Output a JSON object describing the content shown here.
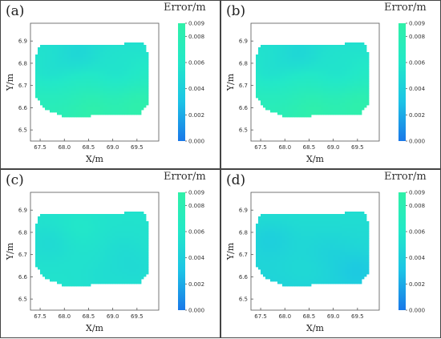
{
  "figure": {
    "colorbar_title": "Error/m",
    "xlabel": "X/m",
    "ylabel": "Y/m"
  },
  "chart_data": [
    {
      "type": "heatmap",
      "panel_label": "(a)",
      "xlabel": "X/m",
      "ylabel": "Y/m",
      "xlim": [
        67.3,
        69.95
      ],
      "ylim": [
        6.45,
        6.98
      ],
      "x_ticks": [
        "67.5",
        "68.0",
        "68.5",
        "69.0",
        "69.5"
      ],
      "y_ticks": [
        "6.5",
        "6.6",
        "6.7",
        "6.8",
        "6.9"
      ],
      "colorbar": {
        "title": "Error/m",
        "range": [
          0,
          0.009
        ],
        "ticks": [
          "0.000",
          "0.002",
          "0.004",
          "0.006",
          "0.008",
          "0.009"
        ],
        "colors": [
          "#1a78e8",
          "#1cc3e6",
          "#22e8c8",
          "#30f0a8"
        ]
      },
      "region": [
        [
          67.42,
          6.84
        ],
        [
          67.5,
          6.88
        ],
        [
          69.65,
          6.89
        ],
        [
          69.75,
          6.83
        ],
        [
          69.72,
          6.62
        ],
        [
          69.55,
          6.57
        ],
        [
          68.0,
          6.56
        ],
        [
          67.55,
          6.6
        ],
        [
          67.42,
          6.65
        ]
      ],
      "field": {
        "base": 0.0066,
        "gradient_y": -0.0012,
        "blobs": [
          [
            68.3,
            6.83,
            -0.001
          ],
          [
            67.7,
            6.75,
            -0.0008
          ],
          [
            69.1,
            6.74,
            -0.0007
          ],
          [
            68.6,
            6.6,
            0.001
          ],
          [
            69.55,
            6.62,
            0.0012
          ]
        ]
      }
    },
    {
      "type": "heatmap",
      "panel_label": "(b)",
      "xlabel": "X/m",
      "ylabel": "Y/m",
      "xlim": [
        67.3,
        69.95
      ],
      "ylim": [
        6.45,
        6.98
      ],
      "x_ticks": [
        "67.5",
        "68.0",
        "68.5",
        "69.0",
        "69.5"
      ],
      "y_ticks": [
        "6.5",
        "6.6",
        "6.7",
        "6.8",
        "6.9"
      ],
      "colorbar": {
        "title": "Error/m",
        "range": [
          0,
          0.009
        ],
        "ticks": [
          "0.000",
          "0.002",
          "0.004",
          "0.006",
          "0.008",
          "0.009"
        ],
        "colors": [
          "#1a78e8",
          "#1cc3e6",
          "#22e8c8",
          "#30f0a8"
        ]
      },
      "region": [
        [
          67.42,
          6.84
        ],
        [
          67.5,
          6.88
        ],
        [
          69.65,
          6.89
        ],
        [
          69.75,
          6.83
        ],
        [
          69.72,
          6.62
        ],
        [
          69.55,
          6.57
        ],
        [
          68.0,
          6.56
        ],
        [
          67.55,
          6.6
        ],
        [
          67.42,
          6.65
        ]
      ],
      "field": {
        "base": 0.0066,
        "gradient_y": -0.0012,
        "blobs": [
          [
            68.3,
            6.83,
            -0.001
          ],
          [
            67.7,
            6.75,
            -0.0008
          ],
          [
            69.1,
            6.74,
            -0.0007
          ],
          [
            68.6,
            6.6,
            0.001
          ],
          [
            69.55,
            6.62,
            0.0012
          ]
        ]
      }
    },
    {
      "type": "heatmap",
      "panel_label": "(c)",
      "xlabel": "X/m",
      "ylabel": "Y/m",
      "xlim": [
        67.3,
        69.95
      ],
      "ylim": [
        6.45,
        6.98
      ],
      "x_ticks": [
        "67.5",
        "68.0",
        "68.5",
        "69.0",
        "69.5"
      ],
      "y_ticks": [
        "6.5",
        "6.6",
        "6.7",
        "6.8",
        "6.9"
      ],
      "colorbar": {
        "title": "Error/m",
        "range": [
          0,
          0.009
        ],
        "ticks": [
          "0.000",
          "0.002",
          "0.004",
          "0.006",
          "0.008",
          "0.009"
        ],
        "colors": [
          "#1a78e8",
          "#1cc3e6",
          "#22e8c8",
          "#30f0a8"
        ]
      },
      "region": [
        [
          67.42,
          6.84
        ],
        [
          67.5,
          6.88
        ],
        [
          69.65,
          6.89
        ],
        [
          69.75,
          6.83
        ],
        [
          69.72,
          6.62
        ],
        [
          69.55,
          6.57
        ],
        [
          68.0,
          6.56
        ],
        [
          67.55,
          6.6
        ],
        [
          67.42,
          6.65
        ]
      ],
      "field": {
        "base": 0.0055,
        "gradient_y": 0.0,
        "blobs": [
          [
            68.3,
            6.82,
            0.0004
          ],
          [
            67.7,
            6.75,
            -0.0006
          ],
          [
            69.2,
            6.72,
            -0.0004
          ],
          [
            68.8,
            6.6,
            -0.0003
          ],
          [
            69.5,
            6.63,
            -0.0005
          ]
        ]
      }
    },
    {
      "type": "heatmap",
      "panel_label": "(d)",
      "xlabel": "X/m",
      "ylabel": "Y/m",
      "xlim": [
        67.3,
        69.95
      ],
      "ylim": [
        6.45,
        6.98
      ],
      "x_ticks": [
        "67.5",
        "68.0",
        "68.5",
        "69.0",
        "69.5"
      ],
      "y_ticks": [
        "6.5",
        "6.6",
        "6.7",
        "6.8",
        "6.9"
      ],
      "colorbar": {
        "title": "Error/m",
        "range": [
          0,
          0.009
        ],
        "ticks": [
          "0.000",
          "0.002",
          "0.004",
          "0.006",
          "0.008",
          "0.009"
        ],
        "colors": [
          "#1a78e8",
          "#1cc3e6",
          "#22e8c8",
          "#30f0a8"
        ]
      },
      "region": [
        [
          67.42,
          6.84
        ],
        [
          67.5,
          6.88
        ],
        [
          69.65,
          6.89
        ],
        [
          69.75,
          6.83
        ],
        [
          69.72,
          6.62
        ],
        [
          69.55,
          6.57
        ],
        [
          68.0,
          6.56
        ],
        [
          67.55,
          6.6
        ],
        [
          67.42,
          6.65
        ]
      ],
      "field": {
        "base": 0.0047,
        "gradient_y": 0.0004,
        "blobs": [
          [
            67.7,
            6.77,
            -0.0008
          ],
          [
            68.9,
            6.72,
            -0.0004
          ],
          [
            69.5,
            6.63,
            -0.0009
          ],
          [
            68.4,
            6.62,
            0.0003
          ]
        ]
      }
    }
  ]
}
